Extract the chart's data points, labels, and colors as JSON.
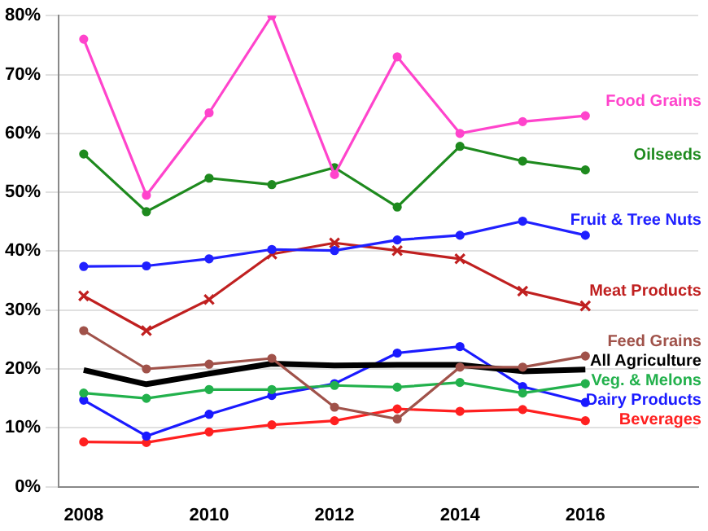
{
  "chart_data": {
    "type": "line",
    "x": [
      2008,
      2009,
      2010,
      2011,
      2012,
      2013,
      2014,
      2015,
      2016
    ],
    "xlim": [
      2007.6,
      2017.8
    ],
    "xticks": [
      2008,
      2010,
      2012,
      2014,
      2016
    ],
    "ylim": [
      0,
      80
    ],
    "yticks": [
      {
        "value": 0,
        "label": "0%"
      },
      {
        "value": 10,
        "label": "10%"
      },
      {
        "value": 20,
        "label": "20%"
      },
      {
        "value": 30,
        "label": "30%"
      },
      {
        "value": 40,
        "label": "40%"
      },
      {
        "value": 50,
        "label": "50%"
      },
      {
        "value": 60,
        "label": "60%"
      },
      {
        "value": 70,
        "label": "70%"
      },
      {
        "value": 80,
        "label": "80%"
      }
    ],
    "grid": "y",
    "line_style": "solid",
    "series": [
      {
        "name": "Food Grains",
        "color": "#ff44cc",
        "marker": "circle",
        "values": [
          76,
          49.5,
          63.5,
          80,
          53,
          73,
          60,
          62,
          63
        ]
      },
      {
        "name": "Oilseeds",
        "color": "#1e8a1e",
        "marker": "circle",
        "values": [
          56.5,
          46.7,
          52.4,
          51.3,
          54.2,
          47.5,
          57.8,
          55.3,
          53.8
        ]
      },
      {
        "name": "Fruit & Tree Nuts",
        "color": "#2020ff",
        "marker": "circle",
        "values": [
          37.4,
          37.5,
          38.7,
          40.3,
          40.1,
          41.9,
          42.7,
          45.1,
          42.7
        ]
      },
      {
        "name": "Meat Products",
        "color": "#c02020",
        "marker": "cross",
        "values": [
          32.4,
          26.5,
          31.8,
          39.5,
          41.4,
          40.1,
          38.7,
          33.2,
          30.7
        ]
      },
      {
        "name": "Feed Grains",
        "color": "#a0524a",
        "marker": "circle",
        "values": [
          26.5,
          20,
          20.8,
          21.8,
          13.5,
          11.5,
          20.3,
          20.3,
          22.2
        ]
      },
      {
        "name": "All Agriculture",
        "color": "#000000",
        "marker": "none",
        "values": [
          19.8,
          17.4,
          19.2,
          20.9,
          20.6,
          20.7,
          20.7,
          19.6,
          19.9
        ]
      },
      {
        "name": "Veg. & Melons",
        "color": "#22b14c",
        "marker": "circle",
        "values": [
          15.9,
          15,
          16.5,
          16.5,
          17.2,
          16.9,
          17.7,
          15.9,
          17.5
        ]
      },
      {
        "name": "Dairy Products",
        "color": "#1a1aff",
        "marker": "circle",
        "values": [
          14.7,
          8.6,
          12.3,
          15.5,
          17.5,
          22.7,
          23.8,
          17,
          14.3
        ]
      },
      {
        "name": "Beverages",
        "color": "#ff2020",
        "marker": "circle",
        "values": [
          7.6,
          7.5,
          9.3,
          10.5,
          11.2,
          13.2,
          12.8,
          13.1,
          11.2
        ]
      }
    ]
  }
}
